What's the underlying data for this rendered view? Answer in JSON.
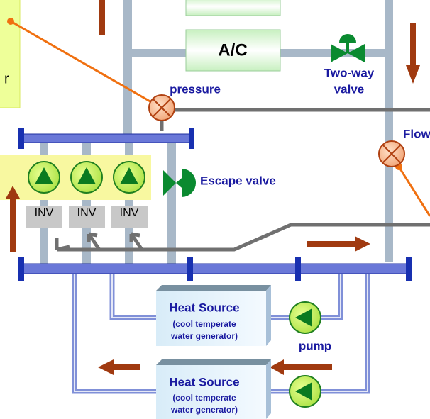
{
  "left_note": "r",
  "ac": "A/C",
  "two_way_valve": [
    "Two-way",
    "valve"
  ],
  "pressure": "pressure",
  "flow": "Flow",
  "escape_valve": "Escape valve",
  "inverters": [
    "INV",
    "INV",
    "INV"
  ],
  "heat_sources": [
    {
      "title": "Heat Source",
      "lines": [
        "(cool temperate",
        "water generator)"
      ]
    },
    {
      "title": "Heat Source",
      "lines": [
        "(cool temperate",
        "water generator)"
      ]
    }
  ],
  "pump": "pump"
}
